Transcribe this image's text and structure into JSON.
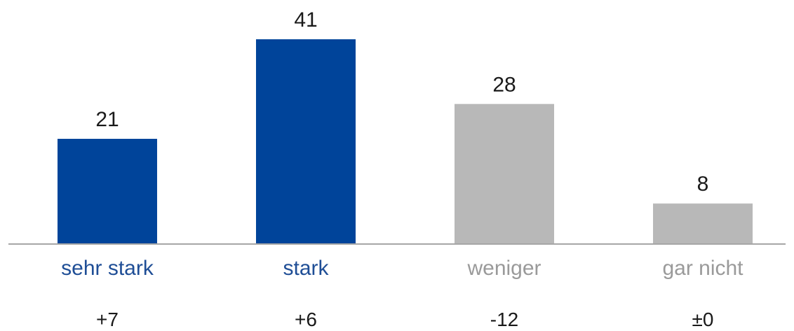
{
  "chart_data": {
    "type": "bar",
    "categories": [
      "sehr stark",
      "stark",
      "weniger",
      "gar nicht"
    ],
    "values": [
      21,
      41,
      28,
      8
    ],
    "value_labels": [
      "21",
      "41",
      "28",
      "8"
    ],
    "changes": [
      "+7",
      "+6",
      "-12",
      "±0"
    ],
    "bar_colors": [
      "#00449a",
      "#00449a",
      "#b8b8b8",
      "#b8b8b8"
    ],
    "category_label_colors": [
      "#1f4e96",
      "#1f4e96",
      "#9a9a9a",
      "#9a9a9a"
    ],
    "axis_color": "#a6a6a6",
    "ylim": [
      0,
      41
    ],
    "grid": false
  }
}
